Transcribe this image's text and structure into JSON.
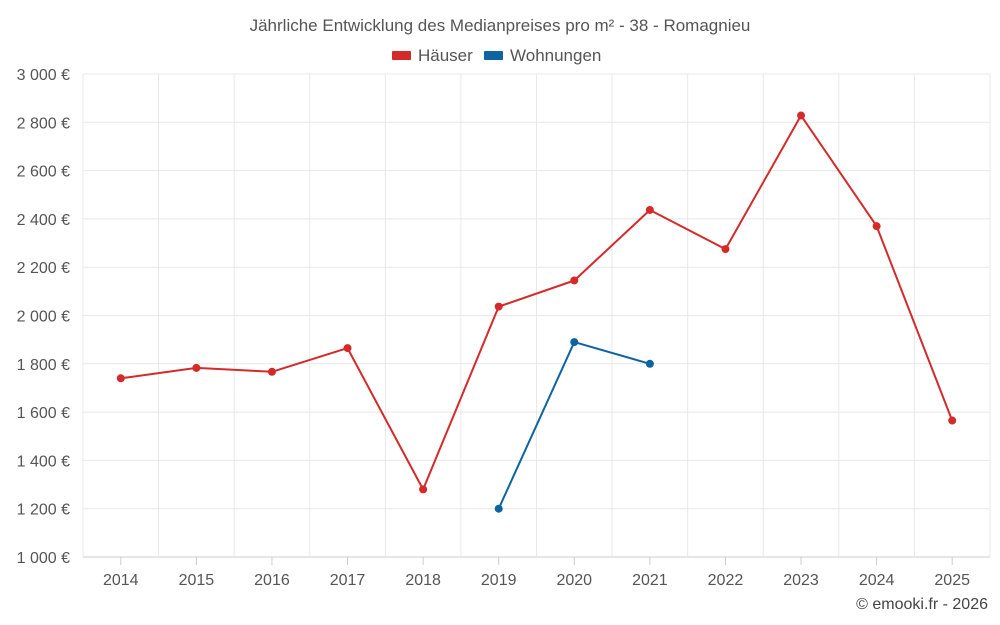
{
  "chart_data": {
    "type": "line",
    "title": "Jährliche Entwicklung des Medianpreises pro m² - 38 - Romagnieu",
    "xlabel": "",
    "ylabel": "",
    "categories": [
      "2014",
      "2015",
      "2016",
      "2017",
      "2018",
      "2019",
      "2020",
      "2021",
      "2022",
      "2023",
      "2024",
      "2025"
    ],
    "ylim": [
      1000,
      3000
    ],
    "y_ticks": [
      1000,
      1200,
      1400,
      1600,
      1800,
      2000,
      2200,
      2400,
      2600,
      2800,
      3000
    ],
    "y_tick_labels": [
      "1 000 €",
      "1 200 €",
      "1 400 €",
      "1 600 €",
      "1 800 €",
      "2 000 €",
      "2 200 €",
      "2 400 €",
      "2 600 €",
      "2 800 €",
      "3 000 €"
    ],
    "grid": true,
    "legend_position": "top-center",
    "series": [
      {
        "name": "Häuser",
        "color": "#d42a2a",
        "values": [
          1740,
          1783,
          1767,
          1865,
          1280,
          2037,
          2145,
          2437,
          2275,
          2828,
          2370,
          1565
        ]
      },
      {
        "name": "Wohnungen",
        "color": "#0d64a0",
        "values": [
          null,
          null,
          null,
          null,
          null,
          1200,
          1890,
          1800,
          null,
          null,
          null,
          null
        ]
      }
    ]
  },
  "credit": "© emooki.fr - 2026"
}
